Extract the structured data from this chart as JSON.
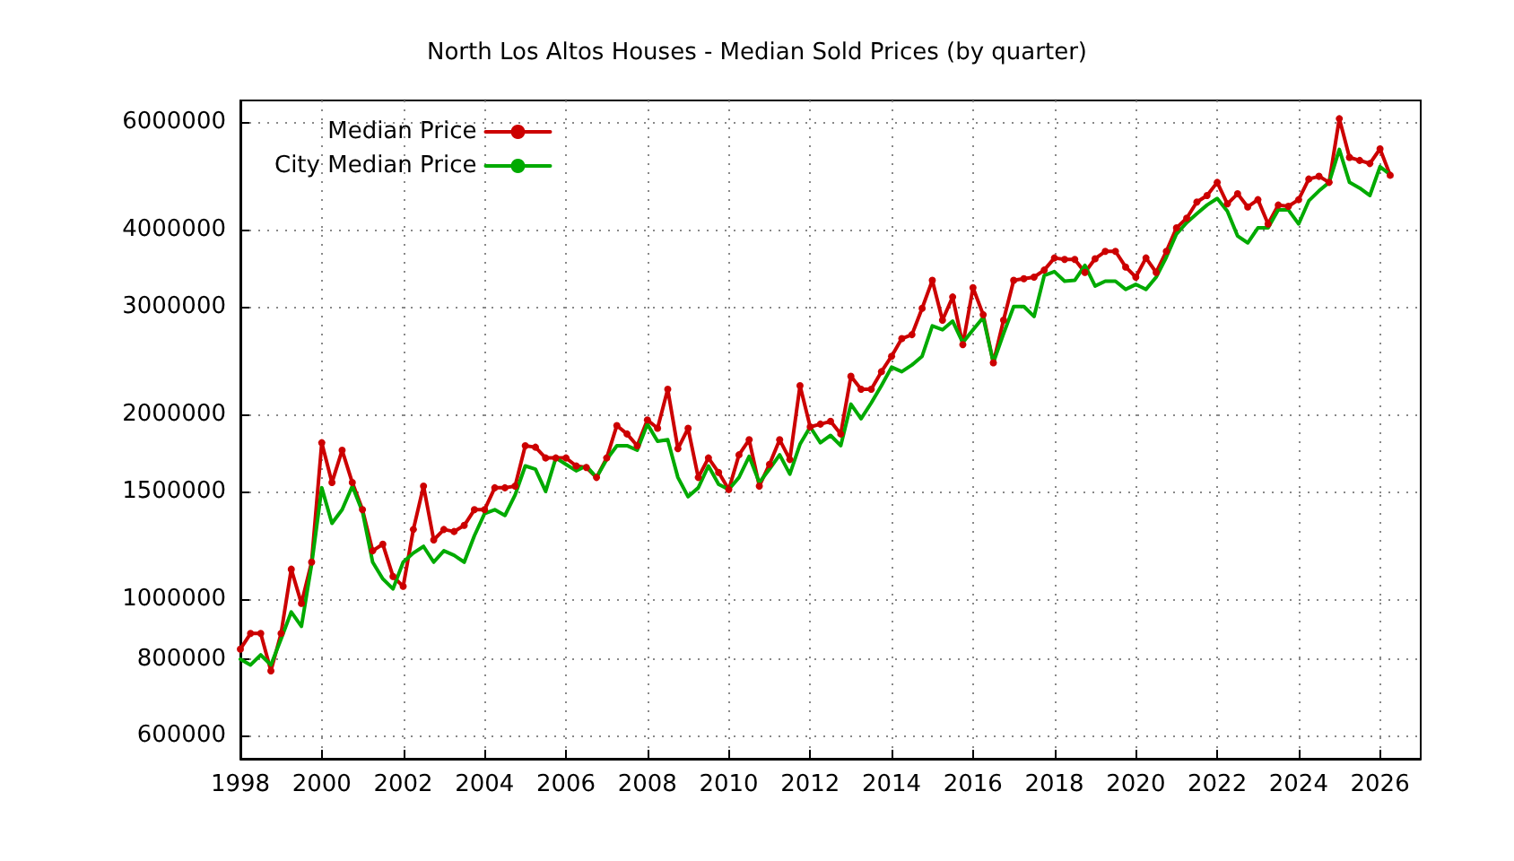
{
  "chart_data": {
    "type": "line",
    "title": "North Los Altos Houses - Median Sold Prices (by quarter)",
    "x": [
      1998,
      1998.25,
      1998.5,
      1998.75,
      1999,
      1999.25,
      1999.5,
      1999.75,
      2000,
      2000.25,
      2000.5,
      2000.75,
      2001,
      2001.25,
      2001.5,
      2001.75,
      2002,
      2002.25,
      2002.5,
      2002.75,
      2003,
      2003.25,
      2003.5,
      2003.75,
      2004,
      2004.25,
      2004.5,
      2004.75,
      2005,
      2005.25,
      2005.5,
      2005.75,
      2006,
      2006.25,
      2006.5,
      2006.75,
      2007,
      2007.25,
      2007.5,
      2007.75,
      2008,
      2008.25,
      2008.5,
      2008.75,
      2009,
      2009.25,
      2009.5,
      2009.75,
      2010,
      2010.25,
      2010.5,
      2010.75,
      2011,
      2011.25,
      2011.5,
      2011.75,
      2012,
      2012.25,
      2012.5,
      2012.75,
      2013,
      2013.25,
      2013.5,
      2013.75,
      2014,
      2014.25,
      2014.5,
      2014.75,
      2015,
      2015.25,
      2015.5,
      2015.75,
      2016,
      2016.25,
      2016.5,
      2016.75,
      2017,
      2017.25,
      2017.5,
      2017.75,
      2018,
      2018.25,
      2018.5,
      2018.75,
      2019,
      2019.25,
      2019.5,
      2019.75,
      2020,
      2020.25,
      2020.5,
      2020.75,
      2021,
      2021.25,
      2021.5,
      2021.75,
      2022,
      2022.25,
      2022.5,
      2022.75,
      2023,
      2023.25,
      2023.5,
      2023.75,
      2024,
      2024.25,
      2024.5,
      2024.75,
      2025,
      2025.25,
      2025.5,
      2025.75,
      2026,
      2026.25
    ],
    "series": [
      {
        "name": "Median Price",
        "color": "#cc0000",
        "marker": "circle",
        "values": [
          830000,
          880000,
          880000,
          765000,
          880000,
          1120000,
          985000,
          1150000,
          1800000,
          1550000,
          1750000,
          1550000,
          1400000,
          1200000,
          1230000,
          1090000,
          1050000,
          1300000,
          1530000,
          1250000,
          1300000,
          1290000,
          1320000,
          1400000,
          1400000,
          1520000,
          1520000,
          1530000,
          1780000,
          1770000,
          1700000,
          1700000,
          1700000,
          1650000,
          1640000,
          1580000,
          1700000,
          1920000,
          1860000,
          1780000,
          1960000,
          1900000,
          2200000,
          1760000,
          1900000,
          1580000,
          1700000,
          1610000,
          1510000,
          1720000,
          1820000,
          1530000,
          1660000,
          1820000,
          1690000,
          2230000,
          1910000,
          1930000,
          1950000,
          1860000,
          2310000,
          2200000,
          2200000,
          2350000,
          2490000,
          2660000,
          2700000,
          2980000,
          3310000,
          2850000,
          3110000,
          2600000,
          3220000,
          2910000,
          2430000,
          2850000,
          3310000,
          3330000,
          3350000,
          3440000,
          3600000,
          3580000,
          3580000,
          3410000,
          3590000,
          3690000,
          3690000,
          3480000,
          3350000,
          3600000,
          3410000,
          3690000,
          4030000,
          4180000,
          4440000,
          4550000,
          4780000,
          4410000,
          4580000,
          4360000,
          4480000,
          4090000,
          4390000,
          4370000,
          4480000,
          4840000,
          4890000,
          4780000,
          6070000,
          5250000,
          5190000,
          5130000,
          5420000,
          4910000
        ]
      },
      {
        "name": "City Median Price",
        "color": "#00aa00",
        "marker": "none",
        "values": [
          799000,
          782000,
          812000,
          782000,
          862000,
          954000,
          904000,
          1140000,
          1520000,
          1330000,
          1400000,
          1530000,
          1390000,
          1150000,
          1080000,
          1040000,
          1150000,
          1190000,
          1220000,
          1150000,
          1200000,
          1180000,
          1150000,
          1270000,
          1380000,
          1400000,
          1370000,
          1480000,
          1650000,
          1630000,
          1500000,
          1700000,
          1660000,
          1620000,
          1650000,
          1580000,
          1690000,
          1780000,
          1780000,
          1750000,
          1930000,
          1810000,
          1820000,
          1580000,
          1470000,
          1520000,
          1650000,
          1540000,
          1510000,
          1580000,
          1710000,
          1550000,
          1630000,
          1720000,
          1600000,
          1790000,
          1910000,
          1800000,
          1850000,
          1780000,
          2080000,
          1970000,
          2090000,
          2230000,
          2390000,
          2350000,
          2410000,
          2490000,
          2790000,
          2750000,
          2840000,
          2620000,
          2750000,
          2880000,
          2430000,
          2710000,
          3000000,
          3000000,
          2890000,
          3370000,
          3420000,
          3300000,
          3310000,
          3500000,
          3240000,
          3300000,
          3300000,
          3200000,
          3260000,
          3200000,
          3350000,
          3610000,
          3940000,
          4110000,
          4250000,
          4390000,
          4500000,
          4290000,
          3910000,
          3810000,
          4030000,
          4030000,
          4310000,
          4310000,
          4090000,
          4460000,
          4630000,
          4780000,
          5410000,
          4780000,
          4680000,
          4550000,
          5070000,
          4920000
        ]
      }
    ],
    "xlim": [
      1998,
      2027
    ],
    "xticks": [
      1998,
      2000,
      2002,
      2004,
      2006,
      2008,
      2010,
      2012,
      2014,
      2016,
      2018,
      2020,
      2022,
      2024,
      2026
    ],
    "ylim": [
      550000,
      6500000
    ],
    "yticks": [
      600000,
      800000,
      1000000,
      1500000,
      2000000,
      3000000,
      4000000,
      6000000
    ],
    "log": "y",
    "grid": true,
    "legend": "top left",
    "line_style": "solid"
  }
}
